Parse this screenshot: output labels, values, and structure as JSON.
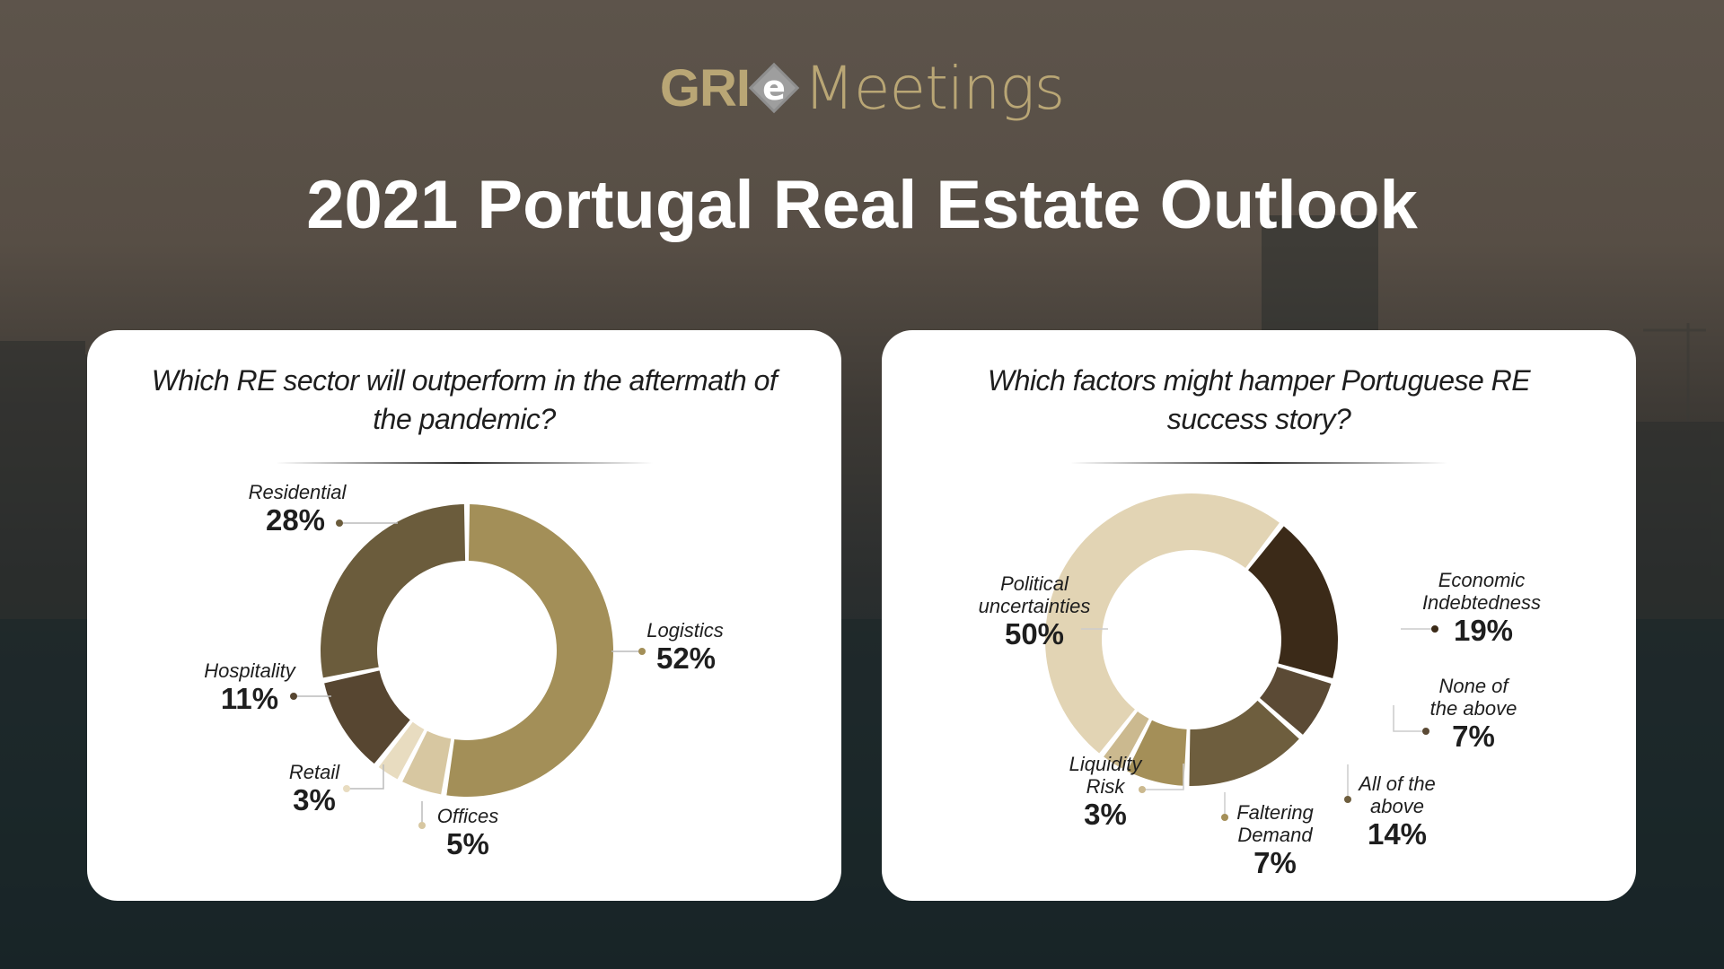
{
  "logo": {
    "part1": "GRI",
    "part2": "e",
    "part3": "Meetings"
  },
  "title": "2021 Portugal Real Estate Outlook",
  "colors": {
    "logistics": "#a38f58",
    "residential": "#6b5c3c",
    "hospitality": "#574631",
    "retail": "#e8dcc0",
    "offices": "#d7c7a1",
    "political": "#e2d4b4",
    "economic": "#3b2a18",
    "none_above": "#5b4a35",
    "all_above": "#6e5e3e",
    "faltering": "#a48f58",
    "liquidity": "#cbb98f"
  },
  "chart_data": [
    {
      "type": "pie",
      "title": "Which RE sector will outperform in the aftermath of the pandemic?",
      "slices": [
        {
          "name": "Logistics",
          "value": 52,
          "label": "52%",
          "color": "#a38f58"
        },
        {
          "name": "Offices",
          "value": 5,
          "label": "5%",
          "color": "#d7c7a1"
        },
        {
          "name": "Retail",
          "value": 3,
          "label": "3%",
          "color": "#e8dcc0"
        },
        {
          "name": "Hospitality",
          "value": 11,
          "label": "11%",
          "color": "#574631"
        },
        {
          "name": "Residential",
          "value": 28,
          "label": "28%",
          "color": "#6b5c3c"
        }
      ]
    },
    {
      "type": "pie",
      "title": "Which factors might hamper Portuguese RE success story?",
      "slices": [
        {
          "name": "Economic Indebtedness",
          "value": 19,
          "label": "19%",
          "color": "#3b2a18"
        },
        {
          "name": "None of the above",
          "value": 7,
          "label": "7%",
          "color": "#5b4a35"
        },
        {
          "name": "All of the above",
          "value": 14,
          "label": "14%",
          "color": "#6e5e3e"
        },
        {
          "name": "Faltering Demand",
          "value": 7,
          "label": "7%",
          "color": "#a48f58"
        },
        {
          "name": "Liquidity Risk",
          "value": 3,
          "label": "3%",
          "color": "#cbb98f"
        },
        {
          "name": "Political uncertainties",
          "value": 50,
          "label": "50%",
          "color": "#e2d4b4"
        }
      ]
    }
  ],
  "left_labels": {
    "residential": [
      "Residential"
    ],
    "residential_pct": "28%",
    "logistics": [
      "Logistics"
    ],
    "logistics_pct": "52%",
    "hospitality": [
      "Hospitality"
    ],
    "hospitality_pct": "11%",
    "retail": [
      "Retail"
    ],
    "retail_pct": "3%",
    "offices": [
      "Offices"
    ],
    "offices_pct": "5%"
  },
  "right_labels": {
    "political": [
      "Political",
      "uncertainties"
    ],
    "political_pct": "50%",
    "economic": [
      "Economic",
      "Indebtedness"
    ],
    "economic_pct": "19%",
    "none_above": [
      "None of",
      "the above"
    ],
    "none_above_pct": "7%",
    "all_above": [
      "All of the",
      "above"
    ],
    "all_above_pct": "14%",
    "faltering": [
      "Faltering",
      "Demand"
    ],
    "faltering_pct": "7%",
    "liquidity": [
      "Liquidity",
      "Risk"
    ],
    "liquidity_pct": "3%"
  }
}
